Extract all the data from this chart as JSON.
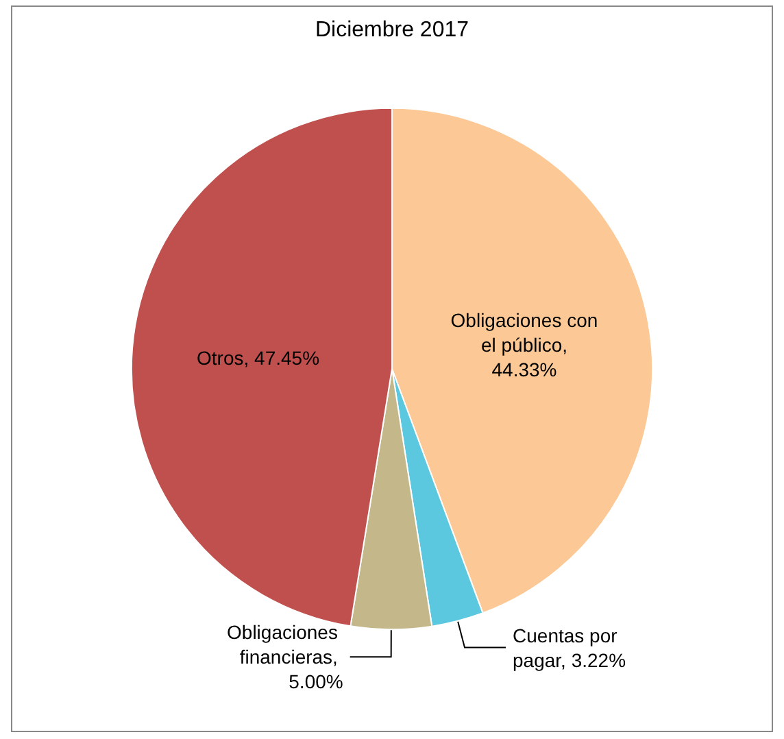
{
  "chart_data": {
    "type": "pie",
    "title": "Diciembre 2017",
    "categories": [
      "Obligaciones con el público",
      "Cuentas por pagar",
      "Obligaciones financieras",
      "Otros"
    ],
    "values": [
      44.33,
      3.22,
      5.0,
      47.45
    ],
    "colors": [
      "#fcc896",
      "#5bc8e0",
      "#c4b88a",
      "#c0504d"
    ],
    "value_labels": [
      ", 44.33%",
      ", 3.22%",
      ", 5.00%",
      ", 47.45%"
    ],
    "legend": false
  }
}
